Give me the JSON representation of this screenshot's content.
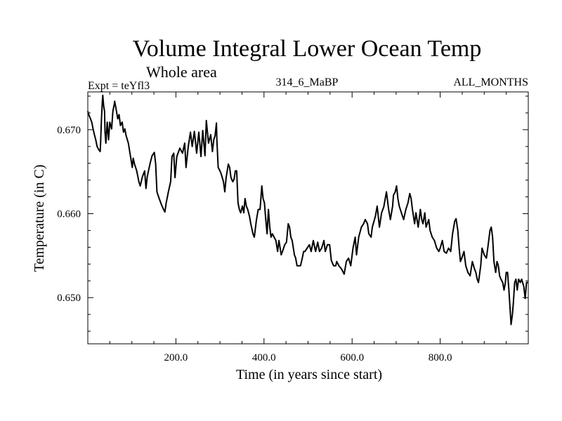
{
  "chart_data": {
    "type": "line",
    "title": "Volume Integral Lower Ocean Temp",
    "subtitle": "Whole area",
    "annotations": {
      "experiment": "Expt = teYfl3",
      "period": "314_6_MaBP",
      "months": "ALL_MONTHS"
    },
    "xlabel": "Time (in years since start)",
    "ylabel": "Temperature (in C)",
    "xlim": [
      0,
      1000
    ],
    "ylim": [
      0.6445,
      0.6745
    ],
    "x_ticks": [
      200,
      400,
      600,
      800
    ],
    "x_tick_labels": [
      "200.0",
      "400.0",
      "600.0",
      "800.0"
    ],
    "x_minor_step": 50,
    "y_ticks": [
      0.65,
      0.66,
      0.67
    ],
    "y_tick_labels": [
      "0.650",
      "0.660",
      "0.670"
    ],
    "y_minor_step": 0.002,
    "grid": false,
    "legend": "none",
    "series": [
      {
        "name": "Lower Ocean Temp",
        "color": "#000000",
        "x": [
          0,
          2,
          6,
          9,
          12,
          15,
          18,
          21,
          25,
          28,
          29,
          31,
          33,
          34,
          36,
          38,
          39,
          41,
          44,
          47,
          50,
          54,
          57,
          60,
          61,
          65,
          68,
          71,
          74,
          78,
          81,
          84,
          87,
          92,
          97,
          101,
          103,
          106,
          111,
          116,
          119,
          124,
          129,
          132,
          135,
          141,
          146,
          151,
          154,
          157,
          162,
          167,
          172,
          175,
          178,
          183,
          188,
          191,
          195,
          198,
          202,
          209,
          215,
          220,
          223,
          228,
          233,
          237,
          242,
          247,
          252,
          257,
          261,
          266,
          269,
          274,
          279,
          283,
          286,
          289,
          292,
          293,
          296,
          300,
          303,
          308,
          311,
          314,
          319,
          322,
          325,
          329,
          332,
          335,
          338,
          341,
          344,
          347,
          351,
          354,
          357,
          360,
          363,
          367,
          370,
          375,
          378,
          383,
          387,
          391,
          395,
          398,
          401,
          404,
          407,
          410,
          413,
          416,
          419,
          423,
          427,
          431,
          434,
          439,
          442,
          447,
          451,
          455,
          458,
          461,
          464,
          469,
          472,
          475,
          478,
          483,
          487,
          490,
          493,
          498,
          503,
          507,
          512,
          517,
          522,
          526,
          531,
          536,
          539,
          544,
          549,
          553,
          558,
          563,
          565,
          570,
          576,
          582,
          587,
          592,
          597,
          602,
          607,
          610,
          615,
          621,
          626,
          630,
          635,
          638,
          643,
          646,
          653,
          657,
          662,
          667,
          672,
          678,
          683,
          687,
          692,
          694,
          698,
          701,
          704,
          707,
          712,
          717,
          722,
          727,
          731,
          734,
          737,
          742,
          745,
          750,
          755,
          758,
          761,
          765,
          768,
          774,
          777,
          782,
          787,
          792,
          797,
          800,
          805,
          809,
          814,
          819,
          824,
          828,
          833,
          836,
          840,
          843,
          846,
          849,
          854,
          858,
          863,
          868,
          873,
          878,
          881,
          884,
          887,
          892,
          895,
          900,
          905,
          908,
          913,
          916,
          919,
          922,
          926,
          929,
          932,
          935,
          938,
          942,
          945,
          948,
          950,
          953,
          956,
          959,
          961,
          964,
          966,
          969,
          972,
          975,
          978,
          982,
          985,
          990,
          993,
          996,
          999
        ],
        "y": [
          0.6722,
          0.6718,
          0.6713,
          0.6709,
          0.6701,
          0.6694,
          0.6688,
          0.668,
          0.6676,
          0.6674,
          0.6684,
          0.6712,
          0.6734,
          0.6741,
          0.6728,
          0.6722,
          0.6697,
          0.6684,
          0.6709,
          0.6688,
          0.6709,
          0.6701,
          0.6722,
          0.673,
          0.6734,
          0.6722,
          0.6713,
          0.6718,
          0.6705,
          0.6709,
          0.6697,
          0.6701,
          0.6693,
          0.6684,
          0.6668,
          0.6655,
          0.6666,
          0.6659,
          0.6651,
          0.6638,
          0.6633,
          0.6644,
          0.6651,
          0.663,
          0.6644,
          0.6659,
          0.6669,
          0.6673,
          0.6659,
          0.6626,
          0.6618,
          0.6611,
          0.6605,
          0.6602,
          0.6613,
          0.6626,
          0.6638,
          0.6668,
          0.6672,
          0.6643,
          0.6668,
          0.6678,
          0.6672,
          0.6684,
          0.6655,
          0.668,
          0.6697,
          0.668,
          0.6698,
          0.6672,
          0.6697,
          0.6668,
          0.6699,
          0.6669,
          0.6711,
          0.6684,
          0.6694,
          0.6674,
          0.6688,
          0.6693,
          0.6708,
          0.6688,
          0.6655,
          0.6651,
          0.6647,
          0.6638,
          0.6626,
          0.6643,
          0.6659,
          0.6655,
          0.6643,
          0.6638,
          0.6641,
          0.6651,
          0.6651,
          0.6613,
          0.6605,
          0.6601,
          0.6609,
          0.6601,
          0.6618,
          0.6609,
          0.6605,
          0.6597,
          0.6588,
          0.6576,
          0.6572,
          0.6593,
          0.6605,
          0.6605,
          0.6633,
          0.6618,
          0.6613,
          0.6593,
          0.6576,
          0.6605,
          0.6584,
          0.6572,
          0.6576,
          0.6572,
          0.6568,
          0.6555,
          0.6568,
          0.6551,
          0.6555,
          0.6563,
          0.6566,
          0.6588,
          0.6584,
          0.6572,
          0.6568,
          0.6551,
          0.6547,
          0.6538,
          0.6538,
          0.6538,
          0.6547,
          0.6555,
          0.6555,
          0.6559,
          0.6563,
          0.6555,
          0.6568,
          0.6555,
          0.6566,
          0.6555,
          0.6559,
          0.6568,
          0.6555,
          0.6563,
          0.6563,
          0.6544,
          0.6538,
          0.6538,
          0.6543,
          0.6538,
          0.6534,
          0.6528,
          0.6543,
          0.6547,
          0.6538,
          0.6559,
          0.6572,
          0.6551,
          0.6572,
          0.6584,
          0.6588,
          0.6593,
          0.6588,
          0.6576,
          0.6572,
          0.6584,
          0.6597,
          0.6609,
          0.6584,
          0.6601,
          0.6608,
          0.6626,
          0.6605,
          0.6593,
          0.6609,
          0.6622,
          0.6626,
          0.6633,
          0.6618,
          0.6609,
          0.6601,
          0.6593,
          0.6605,
          0.6613,
          0.6624,
          0.6618,
          0.6605,
          0.6588,
          0.6601,
          0.6584,
          0.6605,
          0.6593,
          0.6588,
          0.6601,
          0.6584,
          0.6593,
          0.658,
          0.6572,
          0.6568,
          0.6559,
          0.6555,
          0.6559,
          0.6568,
          0.6555,
          0.6553,
          0.6559,
          0.6555,
          0.6576,
          0.6591,
          0.6594,
          0.658,
          0.6559,
          0.6543,
          0.6547,
          0.6555,
          0.6538,
          0.653,
          0.6526,
          0.6543,
          0.6534,
          0.653,
          0.6522,
          0.6518,
          0.6538,
          0.6559,
          0.6551,
          0.6547,
          0.6559,
          0.658,
          0.6584,
          0.6572,
          0.6543,
          0.653,
          0.6543,
          0.6538,
          0.6526,
          0.6522,
          0.6518,
          0.6509,
          0.6518,
          0.653,
          0.653,
          0.6509,
          0.6484,
          0.6468,
          0.648,
          0.6493,
          0.6518,
          0.6522,
          0.6509,
          0.6522,
          0.6518,
          0.6522,
          0.6513,
          0.6499,
          0.6518,
          0.6518
        ]
      }
    ]
  }
}
